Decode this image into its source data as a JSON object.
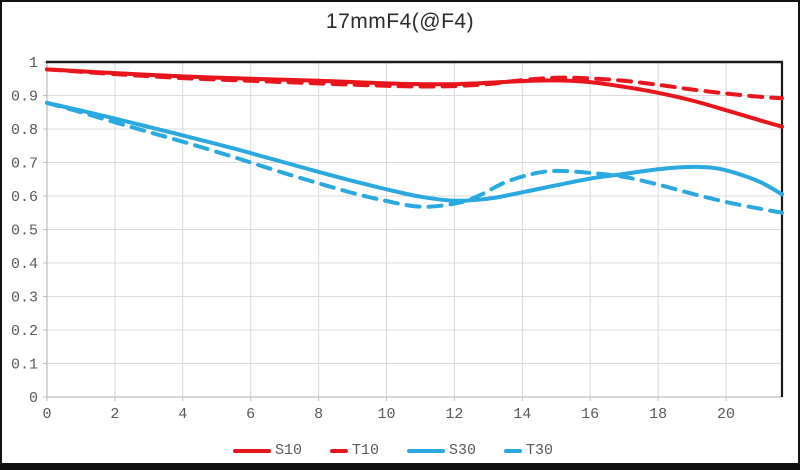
{
  "title": "17mmF4(@F4)",
  "colors": {
    "red": "#e8151c",
    "cyan": "#2aa9e0",
    "grid": "#d9d9d9",
    "axis": "#bfbfbf",
    "plot_border": "#1a1a1a",
    "tick_text": "#595959",
    "title_text": "#2b2b2b",
    "frame_border": "#111111"
  },
  "chart_data": {
    "type": "line",
    "title": "17mmF4(@F4)",
    "xlabel": "",
    "ylabel": "",
    "xlim": [
      0,
      21.65
    ],
    "ylim": [
      0,
      1
    ],
    "grid": true,
    "legend_position": "bottom",
    "x_tick_values": [
      0,
      2,
      4,
      6,
      8,
      10,
      12,
      14,
      16,
      18,
      20
    ],
    "x_tick_labels": [
      "0",
      "2",
      "4",
      "6",
      "8",
      "10",
      "12",
      "14",
      "16",
      "18",
      "20"
    ],
    "y_tick_values": [
      1,
      0.9,
      0.8,
      0.7,
      0.6,
      0.5,
      0.4,
      0.3,
      0.2,
      0.1,
      0
    ],
    "y_tick_labels": [
      "1",
      "0.9",
      "0.8",
      "0.7",
      "0.6",
      "0.5",
      "0.4",
      "0.3",
      "0.2",
      "0.1",
      "0"
    ],
    "series": [
      {
        "name": "S10",
        "color": "#e8151c",
        "style": "solid",
        "points": [
          [
            0,
            0.978
          ],
          [
            2,
            0.967
          ],
          [
            4,
            0.957
          ],
          [
            6,
            0.95
          ],
          [
            8,
            0.944
          ],
          [
            10,
            0.936
          ],
          [
            11,
            0.934
          ],
          [
            12,
            0.934
          ],
          [
            13,
            0.938
          ],
          [
            14,
            0.943
          ],
          [
            15,
            0.945
          ],
          [
            16,
            0.94
          ],
          [
            17,
            0.926
          ],
          [
            18,
            0.908
          ],
          [
            19,
            0.885
          ],
          [
            20,
            0.856
          ],
          [
            21,
            0.826
          ],
          [
            21.65,
            0.807
          ]
        ]
      },
      {
        "name": "T10",
        "color": "#e8151c",
        "style": "dashed",
        "points": [
          [
            0,
            0.978
          ],
          [
            2,
            0.964
          ],
          [
            4,
            0.952
          ],
          [
            6,
            0.944
          ],
          [
            8,
            0.936
          ],
          [
            10,
            0.929
          ],
          [
            11,
            0.927
          ],
          [
            12,
            0.928
          ],
          [
            13,
            0.934
          ],
          [
            14,
            0.946
          ],
          [
            15,
            0.953
          ],
          [
            16,
            0.951
          ],
          [
            17,
            0.944
          ],
          [
            18,
            0.932
          ],
          [
            19,
            0.918
          ],
          [
            20,
            0.906
          ],
          [
            21,
            0.896
          ],
          [
            21.65,
            0.892
          ]
        ]
      },
      {
        "name": "S30",
        "color": "#2aa9e0",
        "style": "solid",
        "points": [
          [
            0,
            0.878
          ],
          [
            1,
            0.855
          ],
          [
            2,
            0.831
          ],
          [
            3,
            0.806
          ],
          [
            4,
            0.781
          ],
          [
            5,
            0.755
          ],
          [
            6,
            0.728
          ],
          [
            7,
            0.7
          ],
          [
            8,
            0.672
          ],
          [
            9,
            0.645
          ],
          [
            10,
            0.62
          ],
          [
            11,
            0.598
          ],
          [
            12,
            0.586
          ],
          [
            13,
            0.592
          ],
          [
            14,
            0.611
          ],
          [
            15,
            0.632
          ],
          [
            16,
            0.652
          ],
          [
            17,
            0.666
          ],
          [
            18,
            0.68
          ],
          [
            19,
            0.687
          ],
          [
            19.7,
            0.683
          ],
          [
            20.3,
            0.668
          ],
          [
            21,
            0.642
          ],
          [
            21.65,
            0.605
          ]
        ]
      },
      {
        "name": "T30",
        "color": "#2aa9e0",
        "style": "dashed",
        "points": [
          [
            0,
            0.878
          ],
          [
            1,
            0.85
          ],
          [
            2,
            0.82
          ],
          [
            3,
            0.791
          ],
          [
            4,
            0.762
          ],
          [
            5,
            0.732
          ],
          [
            6,
            0.7
          ],
          [
            7,
            0.668
          ],
          [
            8,
            0.638
          ],
          [
            9,
            0.609
          ],
          [
            10,
            0.585
          ],
          [
            11,
            0.568
          ],
          [
            12,
            0.577
          ],
          [
            12.7,
            0.6
          ],
          [
            13.5,
            0.641
          ],
          [
            14.3,
            0.666
          ],
          [
            15,
            0.675
          ],
          [
            16,
            0.669
          ],
          [
            17,
            0.657
          ],
          [
            18,
            0.634
          ],
          [
            19,
            0.607
          ],
          [
            20,
            0.582
          ],
          [
            21,
            0.562
          ],
          [
            21.65,
            0.55
          ]
        ]
      }
    ]
  },
  "legend": {
    "items": [
      {
        "label": "S10",
        "color": "#e8151c",
        "style": "solid"
      },
      {
        "label": "T10",
        "color": "#e8151c",
        "style": "dashed"
      },
      {
        "label": "S30",
        "color": "#2aa9e0",
        "style": "solid"
      },
      {
        "label": "T30",
        "color": "#2aa9e0",
        "style": "dashed"
      }
    ]
  }
}
